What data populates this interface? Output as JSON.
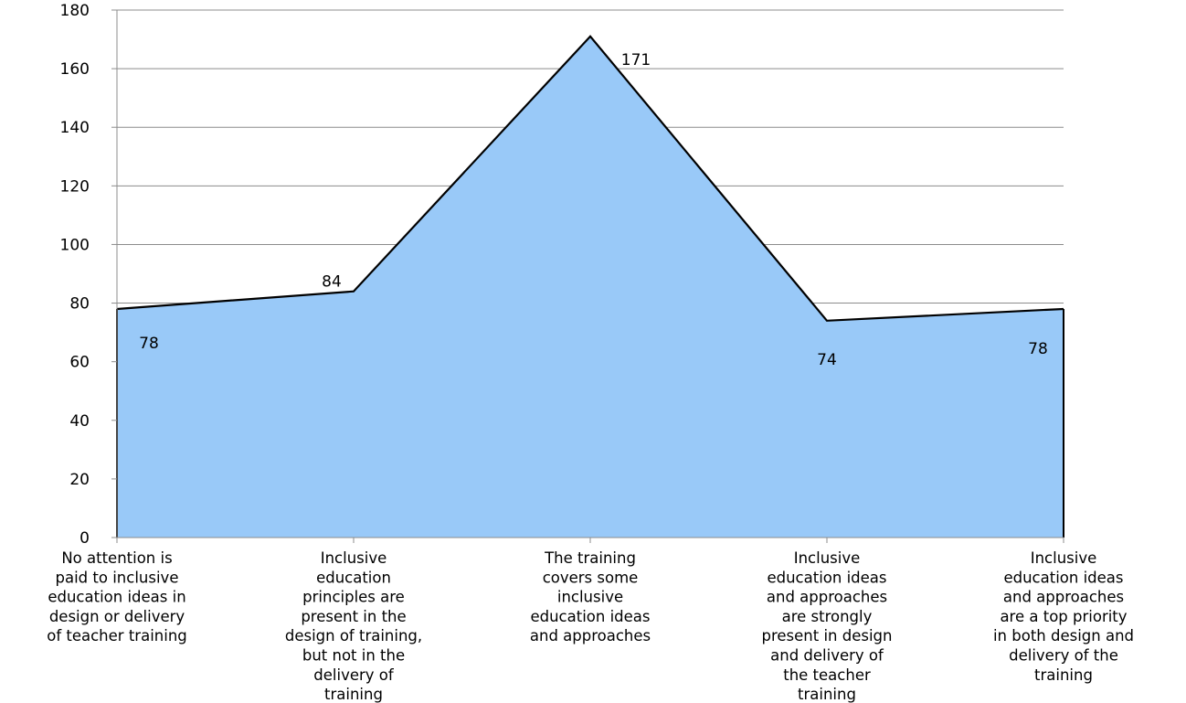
{
  "chart_data": {
    "type": "area",
    "title": "",
    "xlabel": "",
    "ylabel": "",
    "ylim": [
      0,
      180
    ],
    "ytick_step": 20,
    "grid": true,
    "legend": "none",
    "categories": [
      "No attention is paid to inclusive education ideas in design or delivery of teacher training",
      "Inclusive education principles are present in the design of training, but not in the delivery of training",
      "The training covers some inclusive education ideas and approaches",
      "Inclusive education ideas and approaches are strongly present in design and delivery of the teacher training",
      "Inclusive education ideas and approaches are a top priority in both design and delivery of the training"
    ],
    "category_lines": [
      [
        "No attention is",
        "paid to inclusive",
        "education ideas in",
        "design or delivery",
        "of teacher training"
      ],
      [
        "Inclusive",
        "education",
        "principles are",
        "present in the",
        "design of training,",
        "but not in the",
        "delivery of",
        "training"
      ],
      [
        "The training",
        "covers some",
        "inclusive",
        "education ideas",
        "and approaches"
      ],
      [
        "Inclusive",
        "education ideas",
        "and approaches",
        "are strongly",
        "present in design",
        "and delivery of",
        "the teacher",
        "training"
      ],
      [
        "Inclusive",
        "education ideas",
        "and approaches",
        "are a top priority",
        "in both design and",
        "delivery of the",
        "training"
      ]
    ],
    "series": [
      {
        "values": [
          78,
          84,
          171,
          74,
          78
        ],
        "data_labels": [
          "78",
          "84",
          "171",
          "74",
          "78"
        ]
      }
    ],
    "colors": {
      "fill": "#99c9f8",
      "stroke": "#000000",
      "grid": "#8c8c8c"
    }
  }
}
